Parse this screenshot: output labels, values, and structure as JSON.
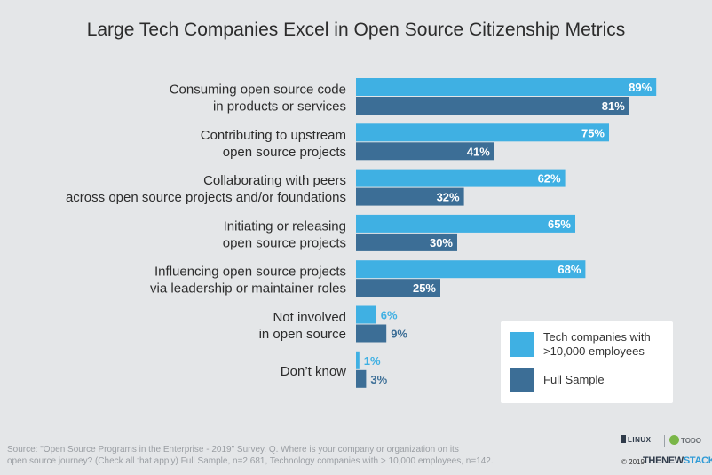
{
  "chart_data": {
    "type": "bar",
    "orientation": "horizontal",
    "title": "Large Tech Companies Excel in Open Source Citizenship Metrics",
    "categories": [
      [
        "Consuming open source code",
        "in products or services"
      ],
      [
        "Contributing to upstream",
        "open source projects"
      ],
      [
        "Collaborating with peers",
        "across open source projects and/or foundations"
      ],
      [
        "Initiating or releasing",
        "open source projects"
      ],
      [
        "Influencing open source projects",
        "via leadership or maintainer roles"
      ],
      [
        "Not involved",
        "in open source"
      ],
      [
        "Don’t know"
      ]
    ],
    "series": [
      {
        "name": "Tech companies with >10,000 employees",
        "color": "#3fb0e3",
        "values": [
          89,
          75,
          62,
          65,
          68,
          6,
          1
        ]
      },
      {
        "name": "Full Sample",
        "color": "#3c6e96",
        "values": [
          81,
          41,
          32,
          30,
          25,
          9,
          3
        ]
      }
    ],
    "value_suffix": "%",
    "xlim": [
      0,
      100
    ],
    "grid": false,
    "legend_position": "bottom-right",
    "legend": {
      "series1_lines": [
        "Tech companies with",
        ">10,000 employees"
      ],
      "series2_label": "Full Sample"
    }
  },
  "source": {
    "line1": "Source: \"Open Source Programs in the Enterprise - 2019\" Survey. Q. Where is your company or organization on its",
    "line2": "open source journey? (Check all that apply) Full Sample, n=2,681, Technology companies with > 10,000 employees, n=142."
  },
  "branding": {
    "linux_foundation": "LINUX",
    "todo": "TODO",
    "year": "© 2019",
    "tns_prefix": "THENEW",
    "tns_suffix": "STACK"
  }
}
